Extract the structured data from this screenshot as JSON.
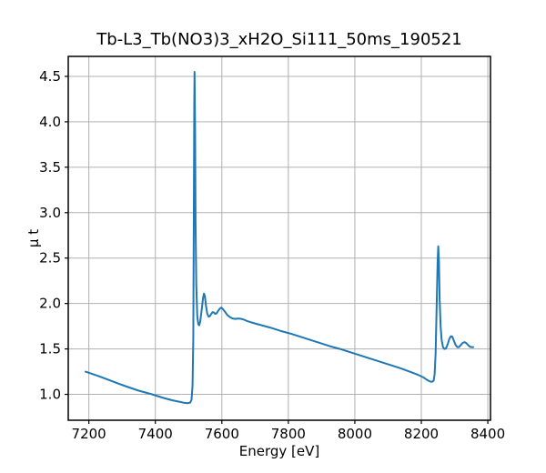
{
  "chart_data": {
    "type": "line",
    "title": "Tb-L3_Tb(NO3)3_xH2O_Si111_50ms_190521",
    "xlabel": "Energy [eV]",
    "ylabel": "μ t",
    "xlim": [
      7138,
      8408
    ],
    "ylim": [
      0.715,
      4.72
    ],
    "xticks": [
      7200,
      7400,
      7600,
      7800,
      8000,
      8200,
      8400
    ],
    "yticks": [
      1.0,
      1.5,
      2.0,
      2.5,
      3.0,
      3.5,
      4.0,
      4.5
    ],
    "ytick_labels": [
      "1.0",
      "1.5",
      "2.0",
      "2.5",
      "3.0",
      "3.5",
      "4.0",
      "4.5"
    ],
    "grid": true,
    "legend": "none",
    "colors": {
      "line": "#1f77b4",
      "grid": "#b0b0b0",
      "spine": "#000000",
      "text": "#000000",
      "background": "#ffffff"
    },
    "line_width": 2,
    "series": [
      {
        "name": "mu_t_spectrum",
        "x": [
          7190,
          7230,
          7270,
          7310,
          7350,
          7390,
          7420,
          7450,
          7470,
          7485,
          7497,
          7505,
          7509,
          7512,
          7514,
          7515.5,
          7517,
          7518,
          7519.5,
          7521,
          7523,
          7526,
          7529,
          7532,
          7535,
          7539,
          7543,
          7546,
          7549,
          7552,
          7556,
          7560,
          7564,
          7568,
          7572,
          7576,
          7580,
          7584,
          7589,
          7594,
          7598,
          7603,
          7609,
          7616,
          7624,
          7632,
          7641,
          7650,
          7659,
          7668,
          7677,
          7690,
          7715,
          7745,
          7775,
          7805,
          7835,
          7865,
          7895,
          7925,
          7955,
          7985,
          8015,
          8045,
          8075,
          8105,
          8135,
          8165,
          8190,
          8205,
          8215,
          8222,
          8228,
          8233,
          8237,
          8240,
          8243,
          8246,
          8249,
          8251,
          8253,
          8255,
          8258,
          8261,
          8265,
          8269,
          8274,
          8279,
          8284,
          8289,
          8293,
          8298,
          8303,
          8308,
          8313,
          8318,
          8324,
          8330,
          8335,
          8340,
          8346,
          8351,
          8356
        ],
        "y": [
          1.25,
          1.2,
          1.145,
          1.09,
          1.04,
          1.0,
          0.965,
          0.935,
          0.92,
          0.908,
          0.902,
          0.91,
          0.94,
          1.1,
          1.6,
          2.8,
          4.2,
          4.55,
          3.9,
          2.9,
          2.2,
          1.86,
          1.77,
          1.76,
          1.8,
          1.92,
          2.05,
          2.11,
          2.08,
          1.98,
          1.89,
          1.855,
          1.86,
          1.885,
          1.905,
          1.9,
          1.885,
          1.89,
          1.92,
          1.945,
          1.955,
          1.94,
          1.91,
          1.875,
          1.85,
          1.835,
          1.83,
          1.835,
          1.83,
          1.82,
          1.805,
          1.79,
          1.765,
          1.735,
          1.7,
          1.67,
          1.635,
          1.6,
          1.565,
          1.53,
          1.5,
          1.465,
          1.43,
          1.395,
          1.36,
          1.325,
          1.29,
          1.25,
          1.215,
          1.19,
          1.165,
          1.15,
          1.14,
          1.14,
          1.15,
          1.22,
          1.45,
          1.95,
          2.45,
          2.63,
          2.45,
          2.05,
          1.75,
          1.6,
          1.52,
          1.5,
          1.505,
          1.55,
          1.61,
          1.64,
          1.635,
          1.59,
          1.545,
          1.52,
          1.52,
          1.54,
          1.565,
          1.575,
          1.565,
          1.545,
          1.525,
          1.52,
          1.52
        ]
      }
    ]
  }
}
